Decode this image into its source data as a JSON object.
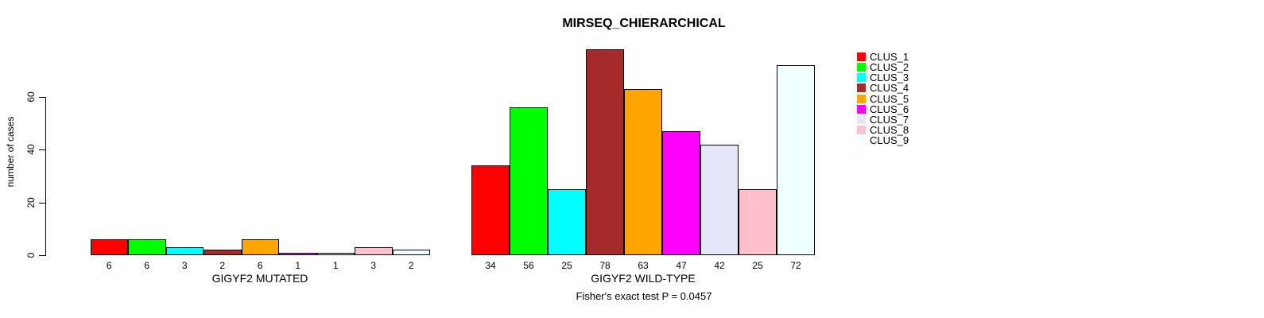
{
  "title": "MIRSEQ_CHIERARCHICAL",
  "y_axis": {
    "label": "number of cases",
    "ticks": [
      0,
      20,
      40,
      60
    ]
  },
  "footer": "Fisher's exact test P = 0.0457",
  "legend": {
    "position": "right",
    "items": [
      {
        "label": "CLUS_1",
        "color": "#FF0000"
      },
      {
        "label": "CLUS_2",
        "color": "#00FF00"
      },
      {
        "label": "CLUS_3",
        "color": "#00FFFF"
      },
      {
        "label": "CLUS_4",
        "color": "#A52A2A"
      },
      {
        "label": "CLUS_5",
        "color": "#FFA500"
      },
      {
        "label": "CLUS_6",
        "color": "#FF00FF"
      },
      {
        "label": "CLUS_7",
        "color": "#E6E6FA"
      },
      {
        "label": "CLUS_8",
        "color": "#FFC0CB"
      },
      {
        "label": "CLUS_9",
        "color": "#F0FFFF"
      }
    ]
  },
  "chart_data": {
    "type": "bar",
    "title": "MIRSEQ_CHIERARCHICAL",
    "xlabel": "",
    "ylabel": "number of cases",
    "ylim": [
      0,
      80
    ],
    "yticks": [
      0,
      20,
      40,
      60
    ],
    "grid": false,
    "legend_position": "right",
    "categories": [
      "CLUS_1",
      "CLUS_2",
      "CLUS_3",
      "CLUS_4",
      "CLUS_5",
      "CLUS_6",
      "CLUS_7",
      "CLUS_8",
      "CLUS_9"
    ],
    "colors": [
      "#FF0000",
      "#00FF00",
      "#00FFFF",
      "#A52A2A",
      "#FFA500",
      "#FF00FF",
      "#E6E6FA",
      "#FFC0CB",
      "#F0FFFF"
    ],
    "groups": [
      {
        "label": "GIGYF2 MUTATED",
        "values": [
          6,
          6,
          3,
          2,
          6,
          1,
          1,
          3,
          2
        ]
      },
      {
        "label": "GIGYF2 WILD-TYPE",
        "values": [
          34,
          56,
          25,
          78,
          63,
          47,
          42,
          25,
          72
        ]
      }
    ],
    "annotation": "Fisher's exact test P = 0.0457"
  }
}
